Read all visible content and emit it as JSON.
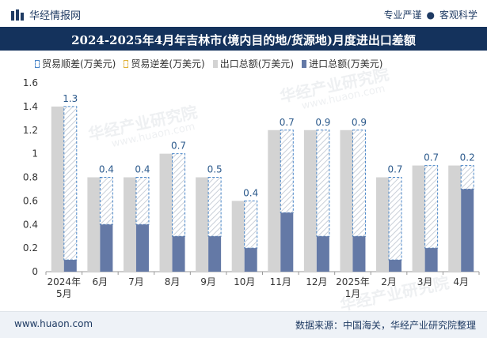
{
  "header": {
    "brand": "华经情报网",
    "tag_left": "专业严谨",
    "tag_sep": "●",
    "tag_right": "客观科学"
  },
  "watermark": {
    "cn": "华经产业研究院",
    "url": "www.huaon.com"
  },
  "footer": {
    "website": "www.huaon.com",
    "source": "数据来源：中国海关，华经产业研究院整理"
  },
  "colors": {
    "title_bg": "#14325c",
    "export": "#d3d3d3",
    "import": "#6479a6",
    "surplus_border": "#4a86c8",
    "deficit_border": "#e0b23a"
  },
  "chart_data": {
    "type": "bar",
    "title": "2024-2025年4月年吉林市(境内目的地/货源地)月度进出口差额",
    "categories": [
      [
        "2024年",
        "5月"
      ],
      [
        "6月"
      ],
      [
        "7月"
      ],
      [
        "8月"
      ],
      [
        "9月"
      ],
      [
        "10月"
      ],
      [
        "11月"
      ],
      [
        "12月"
      ],
      [
        "2025年",
        "1月"
      ],
      [
        "2月"
      ],
      [
        "3月"
      ],
      [
        "4月"
      ]
    ],
    "legend": [
      "贸易顺差(万美元)",
      "贸易逆差(万美元)",
      "出口总额(万美元)",
      "进口总额(万美元)"
    ],
    "series": [
      {
        "name": "出口总额(万美元)",
        "values": [
          1.4,
          0.8,
          0.8,
          1.0,
          0.8,
          0.6,
          1.2,
          1.2,
          1.2,
          0.8,
          0.9,
          0.9
        ]
      },
      {
        "name": "进口总额(万美元)",
        "values": [
          0.1,
          0.4,
          0.4,
          0.3,
          0.3,
          0.2,
          0.5,
          0.3,
          0.3,
          0.1,
          0.2,
          0.7
        ]
      },
      {
        "name": "贸易顺差(万美元)",
        "values": [
          1.3,
          0.4,
          0.4,
          0.7,
          0.5,
          0.4,
          0.7,
          0.9,
          0.9,
          0.7,
          0.7,
          0.2
        ]
      }
    ],
    "data_labels": [
      "1.3",
      "0.4",
      "0.4",
      "0.7",
      "0.5",
      "0.4",
      "0.7",
      "0.9",
      "0.9",
      "0.7",
      "0.7",
      "0.2"
    ],
    "yticks": [
      "0",
      "0.2",
      "0.4",
      "0.6",
      "0.8",
      "1",
      "1.2",
      "1.4",
      "1.6"
    ],
    "ylim": [
      0,
      1.6
    ],
    "xlabel": "",
    "ylabel": ""
  }
}
